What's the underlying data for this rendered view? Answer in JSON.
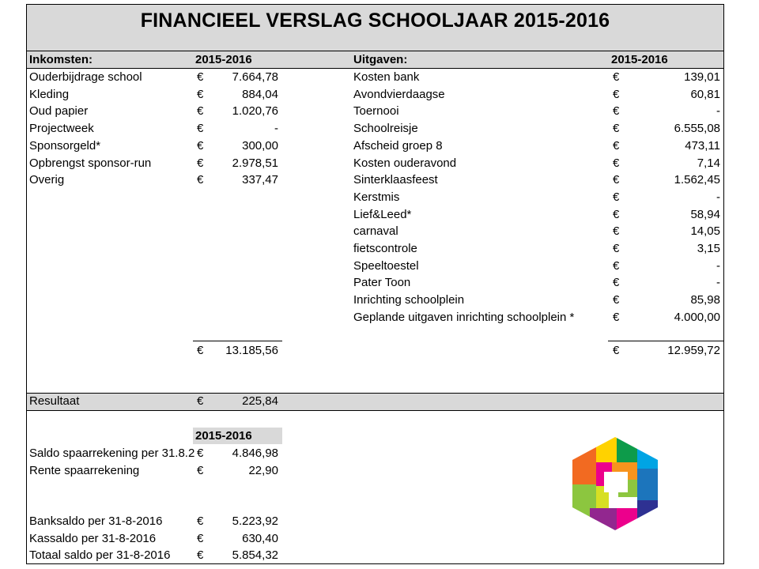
{
  "title": "FINANCIEEL VERSLAG SCHOOLJAAR 2015-2016",
  "income": {
    "header": "Inkomsten:",
    "year": "2015-2016",
    "rows": [
      {
        "label": "Ouderbijdrage school",
        "cur": "€",
        "amount": "7.664,78"
      },
      {
        "label": "Kleding",
        "cur": "€",
        "amount": "884,04"
      },
      {
        "label": "Oud papier",
        "cur": "€",
        "amount": "1.020,76"
      },
      {
        "label": "Projectweek",
        "cur": "€",
        "amount": "-"
      },
      {
        "label": "Sponsorgeld*",
        "cur": "€",
        "amount": "300,00"
      },
      {
        "label": "Opbrengst sponsor-run",
        "cur": "€",
        "amount": "2.978,51"
      },
      {
        "label": "Overig",
        "cur": "€",
        "amount": "337,47"
      }
    ],
    "total_cur": "€",
    "total": "13.185,56"
  },
  "expenses": {
    "header": "Uitgaven:",
    "year": "2015-2016",
    "rows": [
      {
        "label": "Kosten bank",
        "cur": "€",
        "amount": "139,01"
      },
      {
        "label": "Avondvierdaagse",
        "cur": "€",
        "amount": "60,81"
      },
      {
        "label": "Toernooi",
        "cur": "€",
        "amount": "-"
      },
      {
        "label": "Schoolreisje",
        "cur": "€",
        "amount": "6.555,08"
      },
      {
        "label": "Afscheid groep 8",
        "cur": "€",
        "amount": "473,11"
      },
      {
        "label": "Kosten ouderavond",
        "cur": "€",
        "amount": "7,14"
      },
      {
        "label": "Sinterklaasfeest",
        "cur": "€",
        "amount": "1.562,45"
      },
      {
        "label": "Kerstmis",
        "cur": "€",
        "amount": "-"
      },
      {
        "label": "Lief&Leed*",
        "cur": "€",
        "amount": "58,94"
      },
      {
        "label": "carnaval",
        "cur": "€",
        "amount": "14,05"
      },
      {
        "label": "fietscontrole",
        "cur": "€",
        "amount": "3,15"
      },
      {
        "label": "Speeltoestel",
        "cur": "€",
        "amount": "-"
      },
      {
        "label": "Pater Toon",
        "cur": "€",
        "amount": "-"
      },
      {
        "label": "Inrichting schoolplein",
        "cur": "€",
        "amount": "85,98"
      },
      {
        "label": "Geplande uitgaven inrichting schoolplein *",
        "cur": "€",
        "amount": "4.000,00"
      }
    ],
    "total_cur": "€",
    "total": "12.959,72"
  },
  "result": {
    "label": "Resultaat",
    "cur": "€",
    "amount": "225,84"
  },
  "balances": {
    "year": "2015-2016",
    "rows": [
      {
        "label": "Saldo spaarrekening per 31.8.2",
        "cur": "€",
        "amount": "4.846,98"
      },
      {
        "label": "Rente spaarrekening",
        "cur": "€",
        "amount": "22,90"
      }
    ],
    "totals": [
      {
        "label": "Banksaldo per 31-8-2016",
        "cur": "€",
        "amount": "5.223,92"
      },
      {
        "label": "Kassaldo per 31-8-2016",
        "cur": "€",
        "amount": "630,40"
      },
      {
        "label": "Totaal saldo per 31-8-2016",
        "cur": "€",
        "amount": "5.854,32"
      }
    ]
  },
  "logo": {
    "icon": "hexagon-logo-icon"
  }
}
